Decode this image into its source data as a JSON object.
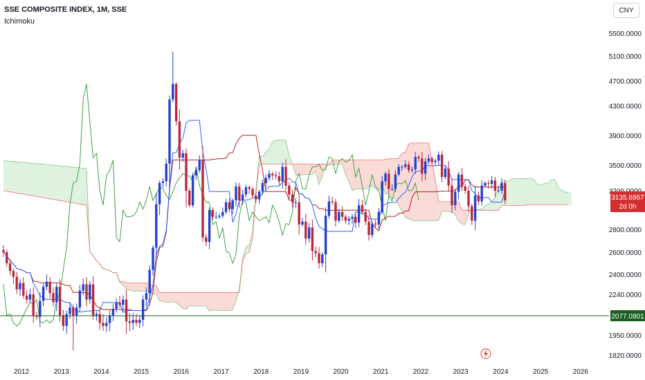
{
  "header": {
    "title": "SSE COMPOSITE INDEX, 1M, SSE",
    "indicator": "Ichimoku",
    "currency": "CNY"
  },
  "colors": {
    "up": "#2440c8",
    "down": "#b8283c",
    "tenkan": "#2962ff",
    "kijun": "#b71c1c",
    "lagging": "#43a047",
    "cloud_bear_fill": "#f8cdc9",
    "cloud_bull_fill": "#d4ecd4",
    "hline": "#1b5e20",
    "price_label_bg": "#d32f2f"
  },
  "chart_data": {
    "type": "candlestick",
    "y_axis_ticks": [
      "5500.0000",
      "5100.0000",
      "4700.0000",
      "4300.0000",
      "3900.0000",
      "3500.0000",
      "3200.0000",
      "2800.0000",
      "2600.0000",
      "2400.0000",
      "2240.0000",
      "1950.0000",
      "1820.0000"
    ],
    "x_axis_ticks": [
      "2012",
      "2013",
      "2014",
      "2015",
      "2016",
      "2017",
      "2018",
      "2019",
      "2020",
      "2021",
      "2022",
      "2023",
      "2024",
      "2025",
      "2026"
    ],
    "last_price": "3135.8867",
    "countdown": "2d 0h",
    "horizontal_line": "2077.0801",
    "close_series": [
      2600,
      2500,
      2430,
      2380,
      2280,
      2330,
      2230,
      2200,
      2240,
      2080,
      2070,
      2190,
      2300,
      2340,
      2250,
      2180,
      2300,
      2080,
      2010,
      2090,
      2140,
      2080,
      2140,
      2270,
      2320,
      2200,
      2320,
      2080,
      2090,
      2030,
      2010,
      2030,
      2080,
      2130,
      2180,
      2160,
      2200,
      2040,
      2030,
      2050,
      2030,
      2050,
      2200,
      2250,
      2440,
      2640,
      3060,
      3290,
      3310,
      3520,
      4400,
      4650,
      4090,
      3600,
      3660,
      3200,
      3050,
      3380,
      3440,
      3570,
      2730,
      2690,
      3000,
      2930,
      2930,
      2940,
      2980,
      3080,
      3010,
      3100,
      3250,
      3100,
      3160,
      3240,
      3220,
      3150,
      3110,
      3190,
      3290,
      3350,
      3400,
      3380,
      3370,
      3310,
      3480,
      3260,
      3160,
      3080,
      3080,
      2850,
      2880,
      2720,
      2820,
      2610,
      2590,
      2500,
      2580,
      2940,
      3090,
      3080,
      2890,
      2980,
      2930,
      2890,
      2910,
      2930,
      2870,
      3050,
      2980,
      2880,
      2750,
      2860,
      2850,
      2980,
      3310,
      3400,
      3220,
      3220,
      3390,
      3480,
      3480,
      3510,
      3440,
      3450,
      3610,
      3590,
      3400,
      3550,
      3590,
      3540,
      3560,
      3640,
      3360,
      3460,
      3260,
      3050,
      3190,
      3390,
      3250,
      3200,
      3040,
      2890,
      3150,
      3090,
      3260,
      3290,
      3280,
      3320,
      3200,
      3200,
      3290,
      3100
    ]
  }
}
